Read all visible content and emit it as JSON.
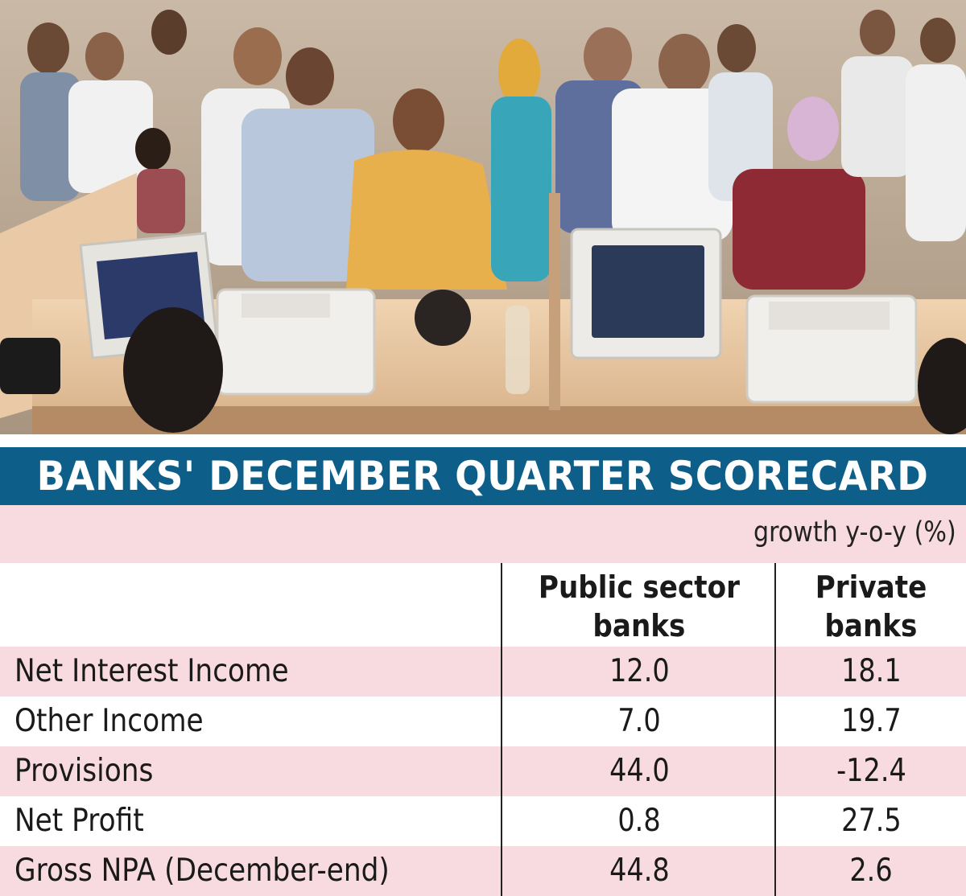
{
  "photo": {
    "icon": "bank-queue-photo"
  },
  "title": "BANKS' DECEMBER QUARTER SCORECARD",
  "unit": "growth y-o-y (%)",
  "colors": {
    "title_bar": "#0d5f8a",
    "row_pink": "#f8dbe0",
    "text": "#1a1a1a"
  },
  "chart_data": {
    "type": "table",
    "title": "BANKS' DECEMBER QUARTER SCORECARD",
    "unit": "growth y-o-y (%)",
    "columns": [
      "Public sector banks",
      "Private banks"
    ],
    "column_lines": [
      [
        "Public sector",
        "banks"
      ],
      [
        "Private",
        "banks"
      ]
    ],
    "rows": [
      {
        "label": "Net Interest Income",
        "values": [
          "12.0",
          "18.1"
        ]
      },
      {
        "label": "Other Income",
        "values": [
          "7.0",
          "19.7"
        ]
      },
      {
        "label": "Provisions",
        "values": [
          "44.0",
          "-12.4"
        ]
      },
      {
        "label": "Net Profit",
        "values": [
          "0.8",
          "27.5"
        ]
      },
      {
        "label": "Gross NPA (December-end)",
        "values": [
          "44.8",
          "2.6"
        ]
      }
    ]
  }
}
